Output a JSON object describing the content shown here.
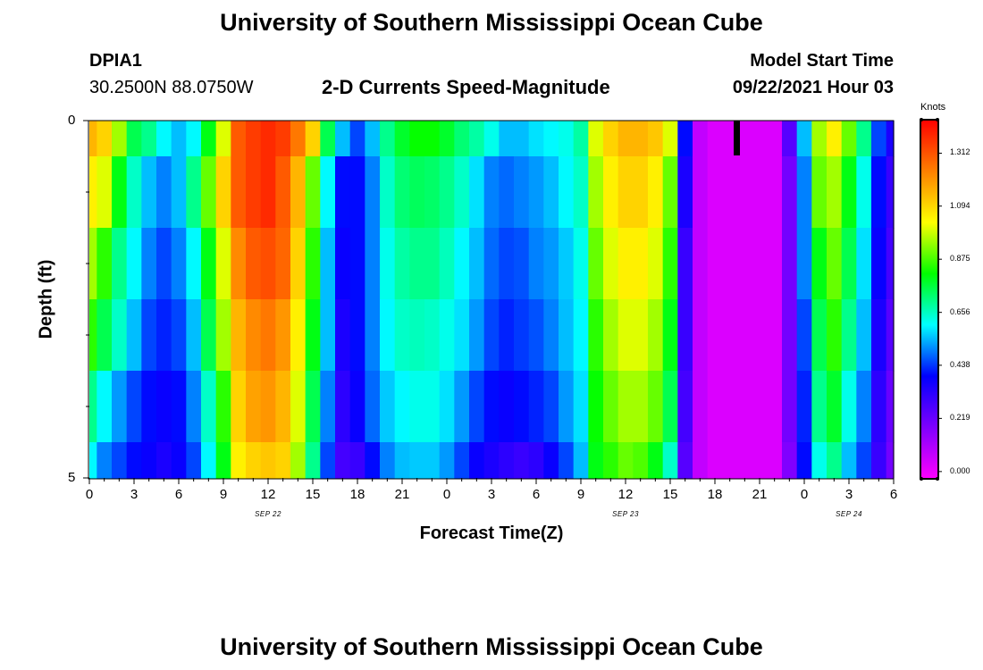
{
  "page": {
    "title_top": "University of Southern Mississippi Ocean Cube",
    "title_bottom": "University of Southern Mississippi Ocean Cube",
    "station_id": "DPIA1",
    "coordinates": "30.2500N  88.0750W",
    "plot_title": "2-D Currents Speed-Magnitude",
    "model_label": "Model Start Time",
    "model_time": "09/22/2021 Hour 03"
  },
  "chart_data": {
    "type": "heatmap",
    "title": "2-D Currents Speed-Magnitude",
    "xlabel": "Forecast Time(Z)",
    "ylabel": "Depth (ft)",
    "colorbar_label": "Knots",
    "x_tick_labels": [
      "0",
      "3",
      "6",
      "9",
      "12",
      "15",
      "18",
      "21",
      "0",
      "3",
      "6",
      "9",
      "12",
      "15",
      "18",
      "21",
      "0",
      "3",
      "6"
    ],
    "date_labels": [
      {
        "label": "SEP 22",
        "hour": 12
      },
      {
        "label": "SEP 23",
        "hour": 36
      },
      {
        "label": "SEP 24",
        "hour": 51
      }
    ],
    "x_range_hours": [
      0,
      54
    ],
    "y_range_ft": [
      0,
      5
    ],
    "y_tick_labels": [
      "0",
      "5"
    ],
    "colorbar_ticks": [
      "1.312",
      "1.094",
      "0.875",
      "0.656",
      "0.438",
      "0.219",
      "0.000"
    ],
    "colorbar_values": [
      1.312,
      1.094,
      0.875,
      0.656,
      0.438,
      0.219,
      0.0
    ],
    "colorbar_range": [
      -0.03,
      1.45
    ],
    "colors": [
      "#ff00ff",
      "#7f00ff",
      "#0000ff",
      "#00ffff",
      "#00ff00",
      "#ffff00",
      "#ff7f00",
      "#ff0000"
    ],
    "depth_levels_ft": [
      0.25,
      1.0,
      2.0,
      3.0,
      4.0,
      4.75
    ],
    "depth_boundaries_ft": [
      0,
      0.5,
      1.5,
      2.5,
      3.5,
      4.5,
      5
    ],
    "time_hours": [
      0,
      1,
      2,
      3,
      4,
      5,
      6,
      7,
      8,
      9,
      10,
      11,
      12,
      13,
      14,
      15,
      16,
      17,
      18,
      19,
      20,
      21,
      22,
      23,
      24,
      25,
      26,
      27,
      28,
      29,
      30,
      31,
      32,
      33,
      34,
      35,
      36,
      37,
      38,
      39,
      40,
      41,
      42,
      43,
      44,
      45,
      46,
      47,
      48,
      49,
      50,
      51,
      52,
      53,
      54
    ],
    "speed_knots": [
      [
        1.15,
        1.1,
        0.95,
        0.75,
        0.7,
        0.6,
        0.55,
        0.6,
        0.8,
        1.0,
        1.3,
        1.35,
        1.38,
        1.35,
        1.25,
        1.1,
        0.75,
        0.55,
        0.45,
        0.55,
        0.7,
        0.78,
        0.82,
        0.82,
        0.78,
        0.72,
        0.68,
        0.62,
        0.55,
        0.55,
        0.58,
        0.6,
        0.62,
        0.68,
        1.0,
        1.1,
        1.15,
        1.15,
        1.12,
        1.0,
        0.4,
        0.07,
        0.03,
        0.03,
        0.03,
        0.03,
        0.03,
        0.25,
        0.55,
        0.95,
        1.05,
        0.9,
        0.7,
        0.45,
        0.35
      ],
      [
        1.05,
        1.0,
        0.8,
        0.65,
        0.55,
        0.5,
        0.55,
        0.7,
        0.9,
        1.1,
        1.3,
        1.35,
        1.38,
        1.3,
        1.15,
        0.9,
        0.6,
        0.4,
        0.4,
        0.5,
        0.65,
        0.72,
        0.74,
        0.73,
        0.7,
        0.65,
        0.58,
        0.5,
        0.48,
        0.5,
        0.52,
        0.55,
        0.6,
        0.65,
        0.95,
        1.05,
        1.1,
        1.1,
        1.05,
        0.9,
        0.35,
        0.07,
        0.03,
        0.03,
        0.03,
        0.03,
        0.03,
        0.2,
        0.5,
        0.9,
        0.95,
        0.8,
        0.62,
        0.4,
        0.3
      ],
      [
        0.95,
        0.85,
        0.7,
        0.6,
        0.5,
        0.45,
        0.5,
        0.6,
        0.8,
        1.0,
        1.22,
        1.3,
        1.32,
        1.28,
        1.1,
        0.85,
        0.55,
        0.38,
        0.4,
        0.5,
        0.62,
        0.68,
        0.7,
        0.7,
        0.66,
        0.6,
        0.55,
        0.48,
        0.45,
        0.46,
        0.5,
        0.52,
        0.56,
        0.62,
        0.9,
        1.0,
        1.05,
        1.05,
        1.0,
        0.85,
        0.3,
        0.07,
        0.03,
        0.03,
        0.03,
        0.03,
        0.03,
        0.2,
        0.5,
        0.8,
        0.9,
        0.75,
        0.58,
        0.38,
        0.28
      ],
      [
        0.85,
        0.75,
        0.65,
        0.55,
        0.45,
        0.42,
        0.45,
        0.55,
        0.75,
        0.95,
        1.15,
        1.22,
        1.25,
        1.2,
        1.05,
        0.8,
        0.55,
        0.35,
        0.4,
        0.5,
        0.6,
        0.65,
        0.66,
        0.65,
        0.62,
        0.58,
        0.52,
        0.45,
        0.42,
        0.44,
        0.46,
        0.5,
        0.55,
        0.6,
        0.85,
        0.95,
        1.0,
        1.0,
        0.95,
        0.8,
        0.3,
        0.07,
        0.03,
        0.03,
        0.03,
        0.03,
        0.03,
        0.2,
        0.45,
        0.75,
        0.85,
        0.7,
        0.55,
        0.35,
        0.25
      ],
      [
        0.7,
        0.6,
        0.52,
        0.45,
        0.4,
        0.38,
        0.4,
        0.5,
        0.65,
        0.85,
        1.1,
        1.18,
        1.2,
        1.15,
        1.0,
        0.75,
        0.5,
        0.32,
        0.38,
        0.48,
        0.56,
        0.6,
        0.62,
        0.62,
        0.58,
        0.52,
        0.45,
        0.4,
        0.38,
        0.4,
        0.42,
        0.45,
        0.52,
        0.58,
        0.82,
        0.9,
        0.95,
        0.95,
        0.9,
        0.75,
        0.28,
        0.07,
        0.03,
        0.03,
        0.03,
        0.03,
        0.03,
        0.2,
        0.42,
        0.7,
        0.78,
        0.62,
        0.5,
        0.32,
        0.22
      ],
      [
        0.6,
        0.5,
        0.45,
        0.4,
        0.38,
        0.35,
        0.38,
        0.45,
        0.6,
        0.8,
        1.05,
        1.1,
        1.12,
        1.1,
        0.95,
        0.7,
        0.45,
        0.28,
        0.3,
        0.4,
        0.5,
        0.55,
        0.56,
        0.56,
        0.52,
        0.45,
        0.38,
        0.35,
        0.32,
        0.3,
        0.32,
        0.38,
        0.45,
        0.55,
        0.8,
        0.85,
        0.9,
        0.88,
        0.8,
        0.65,
        0.25,
        0.07,
        0.03,
        0.03,
        0.03,
        0.03,
        0.03,
        0.18,
        0.4,
        0.62,
        0.7,
        0.55,
        0.45,
        0.3,
        0.2
      ]
    ]
  }
}
